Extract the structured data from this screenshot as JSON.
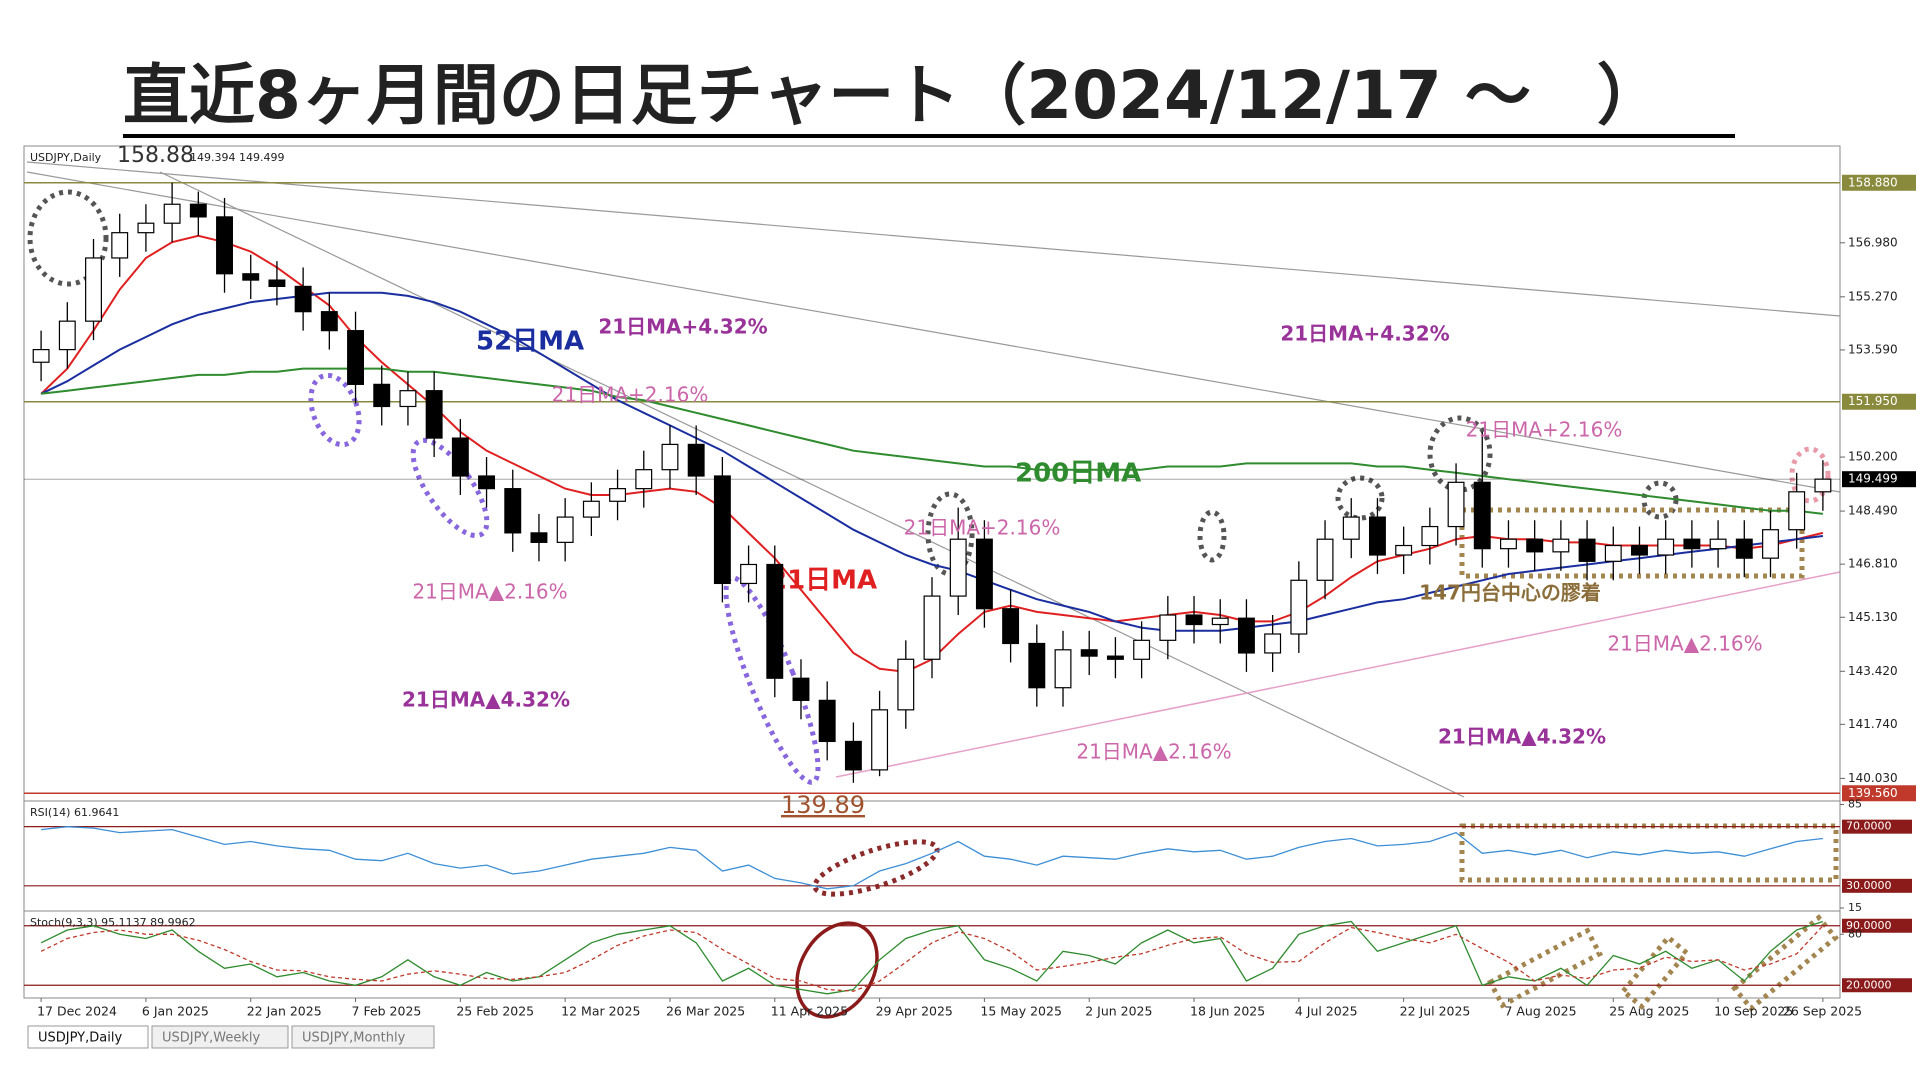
{
  "chart_data": {
    "type": "candlestick",
    "title": "直近8ヶ月間の日足チャート（2024/12/17 ～　）",
    "header": "USDJPY,Daily",
    "header_values": "149.394 149.499",
    "categories": [
      "17 Dec 2024",
      null,
      null,
      null,
      "6 Jan 2025",
      null,
      null,
      null,
      "22 Jan 2025",
      null,
      null,
      null,
      "7 Feb 2025",
      null,
      null,
      null,
      "25 Feb 2025",
      null,
      null,
      null,
      "12 Mar 2025",
      null,
      null,
      null,
      "26 Mar 2025",
      null,
      null,
      null,
      "11 Apr 2025",
      null,
      null,
      null,
      "29 Apr 2025",
      null,
      null,
      null,
      "15 May 2025",
      null,
      null,
      null,
      "2 Jun 2025",
      null,
      null,
      null,
      "18 Jun 2025",
      null,
      null,
      null,
      "4 Jul 2025",
      null,
      null,
      null,
      "22 Jul 2025",
      null,
      null,
      null,
      "7 Aug 2025",
      null,
      null,
      null,
      "25 Aug 2025",
      null,
      null,
      null,
      "10 Sep 2025",
      null,
      null,
      null,
      "26 Sep 2025"
    ],
    "open": [
      153.2,
      153.6,
      154.5,
      156.5,
      157.3,
      157.6,
      158.2,
      157.8,
      156.0,
      155.8,
      155.6,
      154.8,
      154.2,
      152.5,
      151.8,
      152.3,
      150.8,
      149.6,
      149.2,
      147.8,
      147.5,
      148.3,
      148.8,
      149.2,
      149.8,
      150.6,
      149.6,
      146.2,
      146.8,
      143.2,
      142.5,
      141.2,
      140.3,
      142.2,
      143.8,
      145.8,
      147.6,
      145.4,
      144.3,
      142.9,
      144.1,
      143.9,
      143.8,
      144.4,
      145.2,
      144.9,
      145.1,
      144.0,
      144.6,
      146.3,
      147.6,
      148.3,
      147.1,
      147.4,
      148.0,
      149.4,
      147.3,
      147.6,
      147.2,
      147.6,
      146.9,
      147.4,
      147.1,
      147.6,
      147.3,
      147.6,
      147.0,
      147.9,
      149.1
    ],
    "high": [
      154.2,
      155.1,
      157.1,
      157.9,
      158.2,
      158.88,
      158.6,
      158.4,
      156.6,
      156.4,
      156.2,
      155.4,
      154.8,
      153.1,
      152.9,
      152.9,
      151.4,
      150.2,
      149.8,
      148.4,
      148.9,
      149.4,
      149.8,
      150.4,
      151.2,
      151.2,
      150.2,
      147.4,
      147.4,
      143.8,
      143.1,
      141.8,
      142.8,
      144.4,
      146.4,
      148.6,
      148.2,
      146.0,
      144.9,
      144.7,
      144.7,
      144.5,
      145.0,
      145.8,
      145.8,
      145.7,
      145.7,
      145.2,
      146.9,
      148.2,
      148.9,
      148.9,
      148.0,
      148.6,
      150.0,
      151.0,
      148.2,
      148.2,
      148.2,
      148.2,
      148.0,
      148.0,
      148.2,
      148.2,
      148.2,
      148.2,
      148.5,
      149.7,
      150.1
    ],
    "low": [
      152.6,
      153.0,
      153.9,
      155.9,
      156.7,
      157.0,
      157.2,
      155.4,
      155.2,
      155.0,
      154.2,
      153.6,
      151.9,
      151.2,
      151.2,
      150.2,
      149.0,
      148.6,
      147.2,
      146.9,
      146.9,
      147.7,
      148.2,
      148.6,
      149.2,
      149.0,
      145.6,
      145.6,
      142.6,
      141.9,
      140.6,
      139.89,
      140.1,
      141.6,
      143.2,
      145.2,
      144.8,
      143.7,
      142.3,
      142.3,
      143.3,
      143.2,
      143.2,
      143.8,
      144.3,
      144.3,
      143.4,
      143.4,
      144.0,
      145.7,
      147.0,
      146.5,
      146.5,
      146.8,
      147.4,
      146.7,
      146.7,
      146.6,
      146.6,
      146.3,
      146.3,
      146.5,
      146.5,
      146.7,
      146.7,
      146.4,
      146.4,
      147.3,
      148.5
    ],
    "close": [
      153.6,
      154.5,
      156.5,
      157.3,
      157.6,
      158.2,
      157.8,
      156.0,
      155.8,
      155.6,
      154.8,
      154.2,
      152.5,
      151.8,
      152.3,
      150.8,
      149.6,
      149.2,
      147.8,
      147.5,
      148.3,
      148.8,
      149.2,
      149.8,
      150.6,
      149.6,
      146.2,
      146.8,
      143.2,
      142.5,
      141.2,
      140.3,
      142.2,
      143.8,
      145.8,
      147.6,
      145.4,
      144.3,
      142.9,
      144.1,
      143.9,
      143.8,
      144.4,
      145.2,
      144.9,
      145.1,
      144.0,
      144.6,
      146.3,
      147.6,
      148.3,
      147.1,
      147.4,
      148.0,
      149.4,
      147.3,
      147.6,
      147.2,
      147.6,
      146.9,
      147.4,
      147.1,
      147.6,
      147.3,
      147.6,
      147.0,
      147.9,
      149.1,
      149.5
    ],
    "up_color": "#ffffff",
    "down_color": "#000000",
    "ylim": [
      139.41,
      159.98
    ],
    "yticks": [
      {
        "value": 156.98,
        "label": "156.980"
      },
      {
        "value": 155.27,
        "label": "155.270"
      },
      {
        "value": 153.59,
        "label": "153.590"
      },
      {
        "value": 150.2,
        "label": "150.200"
      },
      {
        "value": 148.49,
        "label": "148.490"
      },
      {
        "value": 146.81,
        "label": "146.810"
      },
      {
        "value": 145.13,
        "label": "145.130"
      },
      {
        "value": 143.42,
        "label": "143.420"
      },
      {
        "value": 141.74,
        "label": "141.740"
      },
      {
        "value": 140.03,
        "label": "140.030"
      }
    ],
    "levels": [
      {
        "value": 158.88,
        "label": "158.880",
        "color": "#8a8a3c"
      },
      {
        "value": 151.95,
        "label": "151.950",
        "color": "#8a8a3c"
      },
      {
        "value": 149.499,
        "label": "149.499",
        "color": "#000000"
      },
      {
        "value": 139.56,
        "label": "139.560",
        "color": "#c0392b"
      }
    ],
    "series": [
      {
        "name": "21日MA",
        "color": "#e02020",
        "values": [
          152.2,
          153.0,
          154.2,
          155.5,
          156.5,
          157.0,
          157.2,
          157.0,
          156.7,
          156.2,
          155.6,
          155.0,
          154.0,
          153.2,
          152.5,
          151.8,
          151.0,
          150.4,
          150.0,
          149.6,
          149.2,
          149.0,
          149.0,
          149.1,
          149.2,
          149.1,
          148.6,
          147.8,
          147.0,
          146.0,
          145.0,
          144.0,
          143.5,
          143.4,
          143.8,
          144.6,
          145.3,
          145.5,
          145.3,
          145.2,
          145.1,
          145.0,
          145.1,
          145.2,
          145.3,
          145.2,
          145.0,
          145.0,
          145.3,
          145.8,
          146.4,
          146.9,
          147.1,
          147.3,
          147.6,
          147.7,
          147.6,
          147.6,
          147.5,
          147.5,
          147.4,
          147.4,
          147.4,
          147.4,
          147.4,
          147.3,
          147.4,
          147.6,
          147.8
        ]
      },
      {
        "name": "52日MA",
        "color": "#1a2ea0",
        "values": [
          152.2,
          152.6,
          153.1,
          153.6,
          154.0,
          154.4,
          154.7,
          154.9,
          155.1,
          155.2,
          155.3,
          155.4,
          155.4,
          155.4,
          155.3,
          155.1,
          154.8,
          154.4,
          154.0,
          153.5,
          153.0,
          152.5,
          152.0,
          151.6,
          151.2,
          150.8,
          150.4,
          149.9,
          149.4,
          148.9,
          148.4,
          147.9,
          147.5,
          147.1,
          146.8,
          146.6,
          146.3,
          146.0,
          145.7,
          145.5,
          145.3,
          145.0,
          144.8,
          144.7,
          144.7,
          144.7,
          144.8,
          144.9,
          145.0,
          145.2,
          145.4,
          145.6,
          145.7,
          145.9,
          146.1,
          146.3,
          146.5,
          146.6,
          146.7,
          146.8,
          146.9,
          147.0,
          147.1,
          147.2,
          147.3,
          147.4,
          147.5,
          147.6,
          147.7
        ]
      },
      {
        "name": "200日MA",
        "color": "#2e8b2e",
        "values": [
          152.2,
          152.3,
          152.4,
          152.5,
          152.6,
          152.7,
          152.8,
          152.8,
          152.9,
          152.9,
          153.0,
          153.0,
          153.0,
          153.0,
          152.9,
          152.9,
          152.8,
          152.7,
          152.6,
          152.5,
          152.4,
          152.3,
          152.1,
          152.0,
          151.8,
          151.6,
          151.4,
          151.2,
          151.0,
          150.8,
          150.6,
          150.4,
          150.3,
          150.2,
          150.1,
          150.0,
          149.9,
          149.9,
          149.8,
          149.8,
          149.8,
          149.8,
          149.8,
          149.9,
          149.9,
          149.9,
          150.0,
          150.0,
          150.0,
          150.0,
          150.0,
          149.9,
          149.9,
          149.8,
          149.7,
          149.6,
          149.5,
          149.4,
          149.3,
          149.2,
          149.1,
          149.0,
          148.9,
          148.8,
          148.7,
          148.6,
          148.5,
          148.5,
          148.4
        ]
      }
    ],
    "annotations": [
      "158.88",
      "139.89",
      "21日MA+4.32%",
      "21日MA+4.32%",
      "21日MA+2.16%",
      "21日MA+2.16%",
      "21日MA+2.16%",
      "21日MA▲2.16%",
      "21日MA▲2.16%",
      "21日MA▲2.16%",
      "21日MA▲4.32%",
      "21日MA▲4.32%",
      "147円台中心の膠着"
    ],
    "rsi": {
      "title": "RSI(14) 61.9641",
      "color": "#3d8fd6",
      "level_color": "#8b1a1a",
      "ylim": [
        15,
        86
      ],
      "yticks": [
        85,
        {
          "value": 70,
          "label": "70.0000"
        },
        {
          "value": 30,
          "label": "30.0000"
        },
        15
      ],
      "values": [
        68,
        70,
        69,
        66,
        67,
        68,
        63,
        58,
        60,
        57,
        55,
        54,
        48,
        47,
        52,
        45,
        42,
        44,
        38,
        40,
        44,
        48,
        50,
        52,
        56,
        54,
        40,
        44,
        35,
        32,
        28,
        30,
        40,
        45,
        52,
        60,
        50,
        48,
        44,
        50,
        49,
        48,
        52,
        55,
        53,
        54,
        48,
        50,
        56,
        60,
        62,
        57,
        58,
        60,
        66,
        52,
        54,
        51,
        54,
        49,
        53,
        51,
        54,
        52,
        53,
        50,
        55,
        60,
        62
      ]
    },
    "stoch": {
      "title": "Stoch(9,3,3) 95.1137 89.9962",
      "level_color": "#8b1a1a",
      "ylim": [
        5,
        105
      ],
      "yticks": [
        {
          "value": 90,
          "label": "90.0000"
        },
        80,
        {
          "value": 20,
          "label": "20.0000"
        }
      ],
      "series": [
        {
          "color": "#2e8b2e",
          "values": [
            70,
            85,
            90,
            80,
            75,
            85,
            60,
            40,
            45,
            30,
            35,
            25,
            20,
            30,
            50,
            30,
            20,
            35,
            25,
            30,
            50,
            70,
            80,
            85,
            90,
            70,
            25,
            40,
            20,
            15,
            10,
            15,
            50,
            75,
            85,
            90,
            50,
            40,
            25,
            60,
            55,
            45,
            70,
            85,
            70,
            75,
            25,
            40,
            80,
            90,
            95,
            60,
            70,
            80,
            90,
            20,
            30,
            25,
            40,
            20,
            55,
            45,
            60,
            40,
            50,
            25,
            60,
            85,
            95
          ]
        },
        {
          "color": "#c0392b",
          "values": [
            60,
            75,
            82,
            85,
            80,
            80,
            73,
            62,
            48,
            38,
            37,
            30,
            27,
            25,
            33,
            37,
            33,
            28,
            27,
            30,
            35,
            50,
            67,
            78,
            85,
            82,
            62,
            45,
            28,
            25,
            15,
            13,
            25,
            47,
            70,
            83,
            75,
            60,
            38,
            42,
            47,
            53,
            57,
            67,
            75,
            77,
            57,
            47,
            48,
            70,
            88,
            82,
            75,
            70,
            80,
            63,
            47,
            25,
            32,
            28,
            38,
            40,
            53,
            48,
            50,
            38,
            45,
            57,
            90
          ]
        }
      ]
    },
    "tabs": [
      "USDJPY,Daily",
      "USDJPY,Weekly",
      "USDJPY,Monthly"
    ]
  }
}
